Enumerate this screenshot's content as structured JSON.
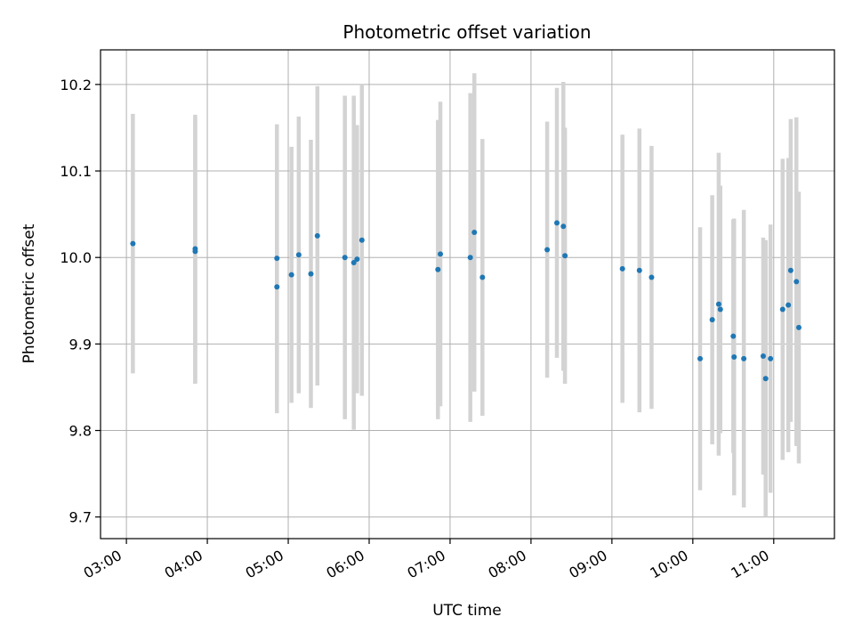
{
  "chart_data": {
    "type": "scatter",
    "title": "Photometric offset variation",
    "xlabel": "UTC time",
    "ylabel": "Photometric offset",
    "x_unit": "hours UTC",
    "xlim": [
      2.68,
      11.75
    ],
    "ylim": [
      9.675,
      10.24
    ],
    "x_ticks": [
      {
        "value": 3,
        "label": "03:00"
      },
      {
        "value": 4,
        "label": "04:00"
      },
      {
        "value": 5,
        "label": "05:00"
      },
      {
        "value": 6,
        "label": "06:00"
      },
      {
        "value": 7,
        "label": "07:00"
      },
      {
        "value": 8,
        "label": "08:00"
      },
      {
        "value": 9,
        "label": "09:00"
      },
      {
        "value": 10,
        "label": "10:00"
      },
      {
        "value": 11,
        "label": "11:00"
      }
    ],
    "y_ticks": [
      {
        "value": 9.7,
        "label": "9.7"
      },
      {
        "value": 9.8,
        "label": "9.8"
      },
      {
        "value": 9.9,
        "label": "9.9"
      },
      {
        "value": 10.0,
        "label": "10.0"
      },
      {
        "value": 10.1,
        "label": "10.1"
      },
      {
        "value": 10.2,
        "label": "10.2"
      }
    ],
    "grid": true,
    "legend": "none",
    "colors": {
      "points": "#1f77b4",
      "errorbars": "#d3d3d3",
      "grid": "#b0b0b0"
    },
    "points": [
      {
        "x": 3.08,
        "y": 10.016,
        "err": 0.15
      },
      {
        "x": 3.85,
        "y": 10.01,
        "err": 0.155
      },
      {
        "x": 3.85,
        "y": 10.007,
        "err": 0.153
      },
      {
        "x": 4.86,
        "y": 9.966,
        "err": 0.146
      },
      {
        "x": 4.86,
        "y": 9.999,
        "err": 0.155
      },
      {
        "x": 5.04,
        "y": 9.98,
        "err": 0.148
      },
      {
        "x": 5.13,
        "y": 10.003,
        "err": 0.16
      },
      {
        "x": 5.28,
        "y": 9.981,
        "err": 0.155
      },
      {
        "x": 5.36,
        "y": 10.025,
        "err": 0.173
      },
      {
        "x": 5.7,
        "y": 10.0,
        "err": 0.187
      },
      {
        "x": 5.81,
        "y": 9.994,
        "err": 0.193
      },
      {
        "x": 5.85,
        "y": 9.998,
        "err": 0.155
      },
      {
        "x": 5.91,
        "y": 10.02,
        "err": 0.18
      },
      {
        "x": 6.85,
        "y": 9.986,
        "err": 0.173
      },
      {
        "x": 6.88,
        "y": 10.004,
        "err": 0.176
      },
      {
        "x": 7.25,
        "y": 10.0,
        "err": 0.19
      },
      {
        "x": 7.3,
        "y": 10.029,
        "err": 0.184
      },
      {
        "x": 7.4,
        "y": 9.977,
        "err": 0.16
      },
      {
        "x": 8.2,
        "y": 10.009,
        "err": 0.148
      },
      {
        "x": 8.32,
        "y": 10.04,
        "err": 0.156
      },
      {
        "x": 8.4,
        "y": 10.036,
        "err": 0.167
      },
      {
        "x": 8.42,
        "y": 10.002,
        "err": 0.148
      },
      {
        "x": 9.13,
        "y": 9.987,
        "err": 0.155
      },
      {
        "x": 9.34,
        "y": 9.985,
        "err": 0.164
      },
      {
        "x": 9.49,
        "y": 9.977,
        "err": 0.152
      },
      {
        "x": 10.09,
        "y": 9.883,
        "err": 0.152
      },
      {
        "x": 10.24,
        "y": 9.928,
        "err": 0.144
      },
      {
        "x": 10.32,
        "y": 9.946,
        "err": 0.175
      },
      {
        "x": 10.34,
        "y": 9.94,
        "err": 0.143
      },
      {
        "x": 10.5,
        "y": 9.909,
        "err": 0.135
      },
      {
        "x": 10.51,
        "y": 9.885,
        "err": 0.16
      },
      {
        "x": 10.63,
        "y": 9.883,
        "err": 0.172
      },
      {
        "x": 10.87,
        "y": 9.886,
        "err": 0.137
      },
      {
        "x": 10.9,
        "y": 9.86,
        "err": 0.16
      },
      {
        "x": 10.96,
        "y": 9.883,
        "err": 0.155
      },
      {
        "x": 11.11,
        "y": 9.94,
        "err": 0.174
      },
      {
        "x": 11.18,
        "y": 9.945,
        "err": 0.17
      },
      {
        "x": 11.21,
        "y": 9.985,
        "err": 0.175
      },
      {
        "x": 11.28,
        "y": 9.972,
        "err": 0.19
      },
      {
        "x": 11.31,
        "y": 9.919,
        "err": 0.157
      }
    ]
  }
}
